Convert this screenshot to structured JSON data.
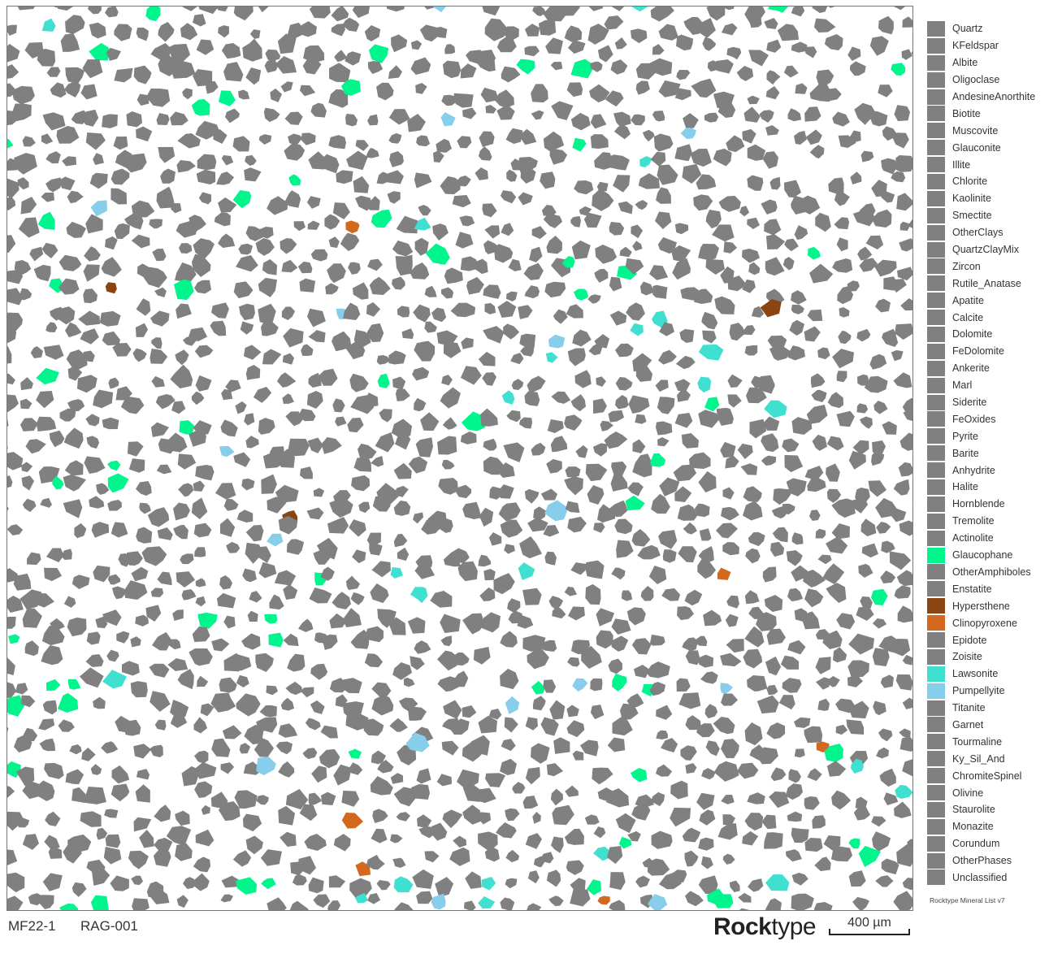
{
  "map": {
    "background": "#ffffff",
    "grain_color": "#808080",
    "phases_shown": [
      "Glaucophane",
      "Hypersthene",
      "Clinopyroxene",
      "Lawsonite",
      "Pumpellyite"
    ]
  },
  "legend": {
    "items": [
      {
        "label": "Quartz",
        "color": "#808080"
      },
      {
        "label": "KFeldspar",
        "color": "#808080"
      },
      {
        "label": "Albite",
        "color": "#808080"
      },
      {
        "label": "Oligoclase",
        "color": "#808080"
      },
      {
        "label": "AndesineAnorthite",
        "color": "#808080"
      },
      {
        "label": "Biotite",
        "color": "#808080"
      },
      {
        "label": "Muscovite",
        "color": "#808080"
      },
      {
        "label": "Glauconite",
        "color": "#808080"
      },
      {
        "label": "Illite",
        "color": "#808080"
      },
      {
        "label": "Chlorite",
        "color": "#808080"
      },
      {
        "label": "Kaolinite",
        "color": "#808080"
      },
      {
        "label": "Smectite",
        "color": "#808080"
      },
      {
        "label": "OtherClays",
        "color": "#808080"
      },
      {
        "label": "QuartzClayMix",
        "color": "#808080"
      },
      {
        "label": "Zircon",
        "color": "#808080"
      },
      {
        "label": "Rutile_Anatase",
        "color": "#808080"
      },
      {
        "label": "Apatite",
        "color": "#808080"
      },
      {
        "label": "Calcite",
        "color": "#808080"
      },
      {
        "label": "Dolomite",
        "color": "#808080"
      },
      {
        "label": "FeDolomite",
        "color": "#808080"
      },
      {
        "label": "Ankerite",
        "color": "#808080"
      },
      {
        "label": "Marl",
        "color": "#808080"
      },
      {
        "label": "Siderite",
        "color": "#808080"
      },
      {
        "label": "FeOxides",
        "color": "#808080"
      },
      {
        "label": "Pyrite",
        "color": "#808080"
      },
      {
        "label": "Barite",
        "color": "#808080"
      },
      {
        "label": "Anhydrite",
        "color": "#808080"
      },
      {
        "label": "Halite",
        "color": "#808080"
      },
      {
        "label": "Hornblende",
        "color": "#808080"
      },
      {
        "label": "Tremolite",
        "color": "#808080"
      },
      {
        "label": "Actinolite",
        "color": "#808080"
      },
      {
        "label": "Glaucophane",
        "color": "#00F58C"
      },
      {
        "label": "OtherAmphiboles",
        "color": "#808080"
      },
      {
        "label": "Enstatite",
        "color": "#808080"
      },
      {
        "label": "Hypersthene",
        "color": "#8B4513"
      },
      {
        "label": "Clinopyroxene",
        "color": "#D2691E"
      },
      {
        "label": "Epidote",
        "color": "#808080"
      },
      {
        "label": "Zoisite",
        "color": "#808080"
      },
      {
        "label": "Lawsonite",
        "color": "#40E0D0"
      },
      {
        "label": "Pumpellyite",
        "color": "#87CEEB"
      },
      {
        "label": "Titanite",
        "color": "#808080"
      },
      {
        "label": "Garnet",
        "color": "#808080"
      },
      {
        "label": "Tourmaline",
        "color": "#808080"
      },
      {
        "label": "Ky_Sil_And",
        "color": "#808080"
      },
      {
        "label": "ChromiteSpinel",
        "color": "#808080"
      },
      {
        "label": "Olivine",
        "color": "#808080"
      },
      {
        "label": "Staurolite",
        "color": "#808080"
      },
      {
        "label": "Monazite",
        "color": "#808080"
      },
      {
        "label": "Corundum",
        "color": "#808080"
      },
      {
        "label": "OtherPhases",
        "color": "#808080"
      },
      {
        "label": "Unclassified",
        "color": "#808080"
      }
    ],
    "note": "Rocktype Mineral List v7"
  },
  "footer": {
    "sample_id": "MF22-1",
    "sample_code": "RAG-001",
    "brand_bold": "Rock",
    "brand_light": "type",
    "scale_label": "400 µm"
  }
}
